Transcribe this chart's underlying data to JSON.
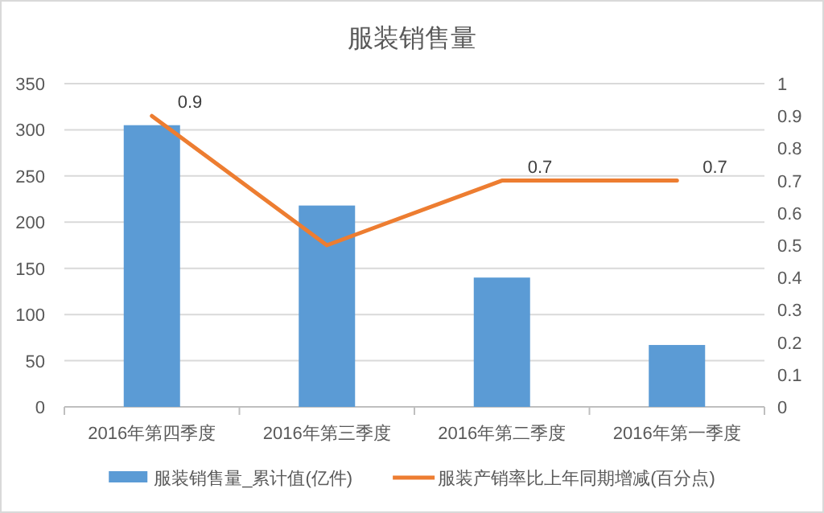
{
  "chart_data": {
    "type": "bar",
    "title": "服装销售量",
    "categories": [
      "2016年第四季度",
      "2016年第三季度",
      "2016年第二季度",
      "2016年第一季度"
    ],
    "series": [
      {
        "name": "服装销售量_累计值(亿件)",
        "color": "#5b9bd5",
        "values": [
          305,
          218,
          140,
          67
        ]
      },
      {
        "name": "服装产销率比上年同期增减(百分点)",
        "type": "line",
        "axis": "y2",
        "color": "#ed7d31",
        "values": [
          0.9,
          0.5,
          0.7,
          0.7
        ],
        "value_labels": [
          "0.9",
          null,
          "0.7",
          "0.7"
        ]
      }
    ],
    "ylim": [
      0,
      350
    ],
    "yticks": [
      0,
      50,
      100,
      150,
      200,
      250,
      300,
      350
    ],
    "y2lim": [
      0,
      1
    ],
    "y2ticks": [
      0,
      0.1,
      0.2,
      0.3,
      0.4,
      0.5,
      0.6,
      0.7,
      0.8,
      0.9,
      1
    ],
    "grid": "y",
    "legend": "bottom",
    "marker": "none",
    "line_style": "solid"
  }
}
